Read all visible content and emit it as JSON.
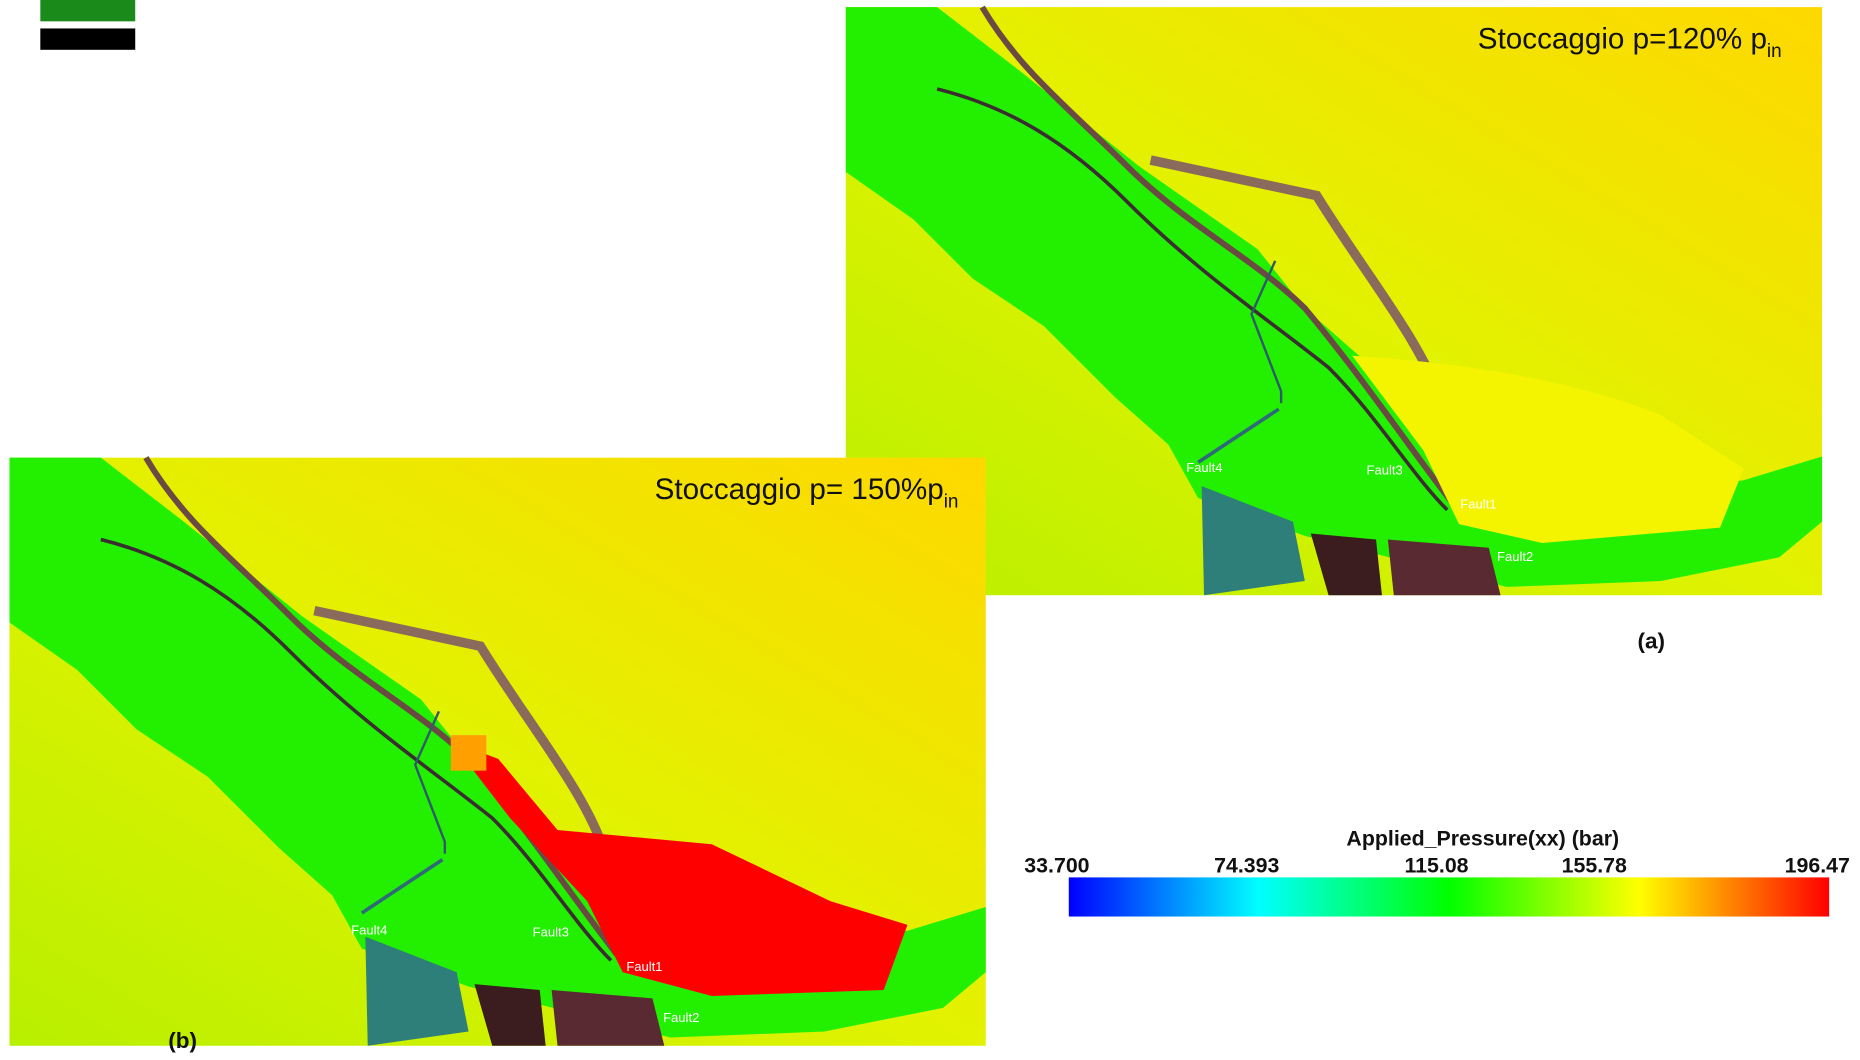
{
  "panel_a": {
    "title": "Stoccaggio p=120% p",
    "title_sub": "in",
    "label": "(a)",
    "faults": [
      "Fault4",
      "Fault3",
      "Fault1",
      "Fault2"
    ]
  },
  "panel_b": {
    "title": "Stoccaggio p= 150%p",
    "title_sub": "in",
    "label": "(b)",
    "faults": [
      "Fault4",
      "Fault3",
      "Fault1",
      "Fault2"
    ]
  },
  "colorbar": {
    "title": "Applied_Pressure(xx) (bar)",
    "ticks": [
      "33.700",
      "74.393",
      "115.08",
      "155.78",
      "196.47"
    ]
  }
}
